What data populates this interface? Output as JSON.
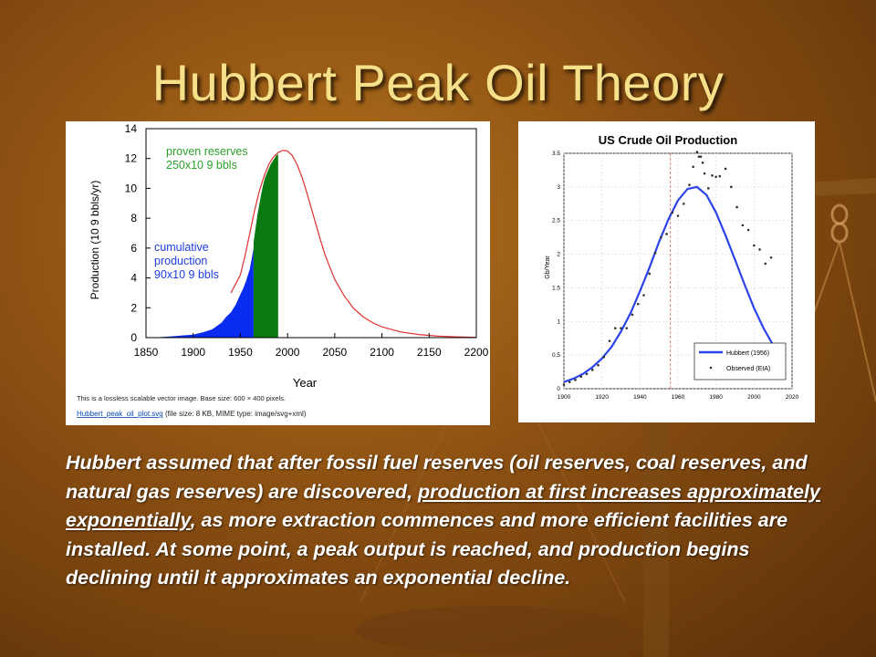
{
  "slide": {
    "title": "Hubbert Peak Oil Theory",
    "body_part1": "Hubbert assumed that after fossil fuel reserves (oil reserves, coal reserves, and natural gas reserves) are discovered, ",
    "body_underlined": "production at first increases approximately exponentially",
    "body_part2": ", as more extraction commences and more efficient facilities are installed. At some point, a peak output is reached, and production begins declining until it approximates an exponential decline."
  },
  "left_caption": {
    "line1": "This is a lossless scalable vector image. Base size: 600 × 400 pixels.",
    "link": "Hubbert_peak_oil_plot.svg",
    "line2_rest": " (file size: 8 KB, MIME type: image/svg+xml)"
  },
  "chart_data": [
    {
      "type": "area",
      "title": "",
      "xlabel": "Year",
      "ylabel": "Production (10 9 bbls/yr)",
      "xlim": [
        1850,
        2200
      ],
      "ylim": [
        0,
        14
      ],
      "x_ticks": [
        1850,
        1900,
        1950,
        2000,
        2050,
        2100,
        2150,
        2200
      ],
      "y_ticks": [
        0,
        2,
        4,
        6,
        8,
        10,
        12,
        14
      ],
      "annotations": [
        {
          "lines": [
            "proven reserves",
            "250x10 9 bbls"
          ],
          "color": "#2ca02c"
        },
        {
          "lines": [
            "cumulative",
            "production",
            "90x10 9 bbls"
          ],
          "color": "#1f3fe0"
        }
      ],
      "series": [
        {
          "color": "#e03030",
          "x": [
            1940,
            1950,
            1955,
            1960,
            1965,
            1970,
            1975,
            1980,
            1985,
            1990,
            1995,
            2000,
            2005,
            2010,
            2015,
            2020,
            2025,
            2030,
            2035,
            2040,
            2050,
            2060,
            2070,
            2080,
            2090,
            2100,
            2120,
            2140,
            2160,
            2180,
            2200
          ],
          "values": [
            3.0,
            4.2,
            5.5,
            7.0,
            8.5,
            9.8,
            10.8,
            11.6,
            12.1,
            12.4,
            12.55,
            12.5,
            12.2,
            11.6,
            10.8,
            9.8,
            8.7,
            7.6,
            6.5,
            5.5,
            3.9,
            2.8,
            1.95,
            1.4,
            1.0,
            0.72,
            0.38,
            0.2,
            0.1,
            0.05,
            0.02
          ]
        },
        {
          "name": "cumulative production",
          "color": "#0a2cf0",
          "x": [
            1855,
            1870,
            1880,
            1890,
            1900,
            1910,
            1920,
            1930,
            1935,
            1940,
            1945,
            1950,
            1953,
            1956,
            1960,
            1962,
            1964
          ],
          "values": [
            0.0,
            0.05,
            0.1,
            0.15,
            0.2,
            0.35,
            0.55,
            1.0,
            1.4,
            1.7,
            2.2,
            2.9,
            3.3,
            3.8,
            4.6,
            5.3,
            6.0
          ]
        },
        {
          "name": "proven reserves",
          "color": "#0a7a10",
          "x": [
            1964,
            1966,
            1968,
            1970,
            1972,
            1974,
            1976,
            1978,
            1980,
            1982,
            1984,
            1986,
            1988,
            1990
          ],
          "values": [
            6.4,
            7.3,
            8.2,
            8.9,
            9.6,
            10.2,
            10.7,
            11.0,
            11.3,
            11.6,
            11.8,
            12.0,
            12.2,
            12.3
          ]
        }
      ]
    },
    {
      "type": "line",
      "title": "US Crude Oil Production",
      "xlabel": "",
      "ylabel": "Gb/Year",
      "xlim": [
        1900,
        2020
      ],
      "ylim": [
        0,
        3.5
      ],
      "x_ticks": [
        1900,
        1920,
        1940,
        1960,
        1980,
        2000,
        2020
      ],
      "y_ticks": [
        0,
        0.5,
        1,
        1.5,
        2,
        2.5,
        3,
        3.5
      ],
      "vline": 1956,
      "legend": "bottom-right",
      "series": [
        {
          "name": "Hubbert (1956)",
          "color": "#2a44e8",
          "x": [
            1900,
            1905,
            1910,
            1915,
            1920,
            1925,
            1930,
            1935,
            1940,
            1945,
            1950,
            1955,
            1960,
            1965,
            1970,
            1975,
            1980,
            1985,
            1990,
            1995,
            2000,
            2005,
            2010
          ],
          "values": [
            0.1,
            0.15,
            0.22,
            0.32,
            0.45,
            0.62,
            0.85,
            1.12,
            1.45,
            1.8,
            2.18,
            2.52,
            2.8,
            2.97,
            3.0,
            2.88,
            2.62,
            2.28,
            1.92,
            1.55,
            1.2,
            0.9,
            0.65
          ]
        },
        {
          "name": "Observed (EIA)",
          "color": "#333333",
          "x": [
            1900,
            1903,
            1906,
            1909,
            1912,
            1915,
            1918,
            1921,
            1924,
            1927,
            1930,
            1933,
            1936,
            1939,
            1942,
            1945,
            1948,
            1951,
            1954,
            1957,
            1960,
            1963,
            1966,
            1968,
            1970,
            1971,
            1972,
            1973,
            1974,
            1976,
            1978,
            1980,
            1982,
            1985,
            1988,
            1991,
            1994,
            1997,
            2000,
            2003,
            2006,
            2009
          ],
          "values": [
            0.06,
            0.1,
            0.13,
            0.18,
            0.22,
            0.28,
            0.35,
            0.47,
            0.71,
            0.9,
            0.9,
            0.9,
            1.1,
            1.26,
            1.39,
            1.71,
            2.02,
            2.25,
            2.3,
            2.62,
            2.57,
            2.75,
            3.03,
            3.3,
            3.52,
            3.45,
            3.45,
            3.36,
            3.2,
            2.98,
            3.17,
            3.15,
            3.16,
            3.27,
            3.0,
            2.7,
            2.43,
            2.36,
            2.13,
            2.07,
            1.86,
            1.95
          ]
        }
      ]
    }
  ]
}
